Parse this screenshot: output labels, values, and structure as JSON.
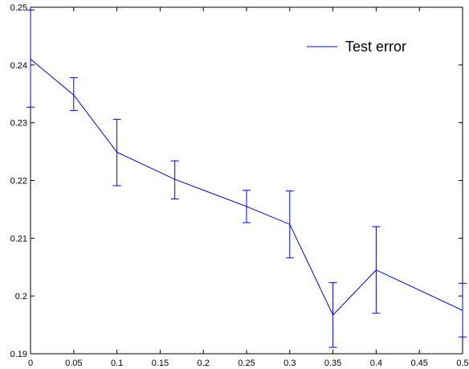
{
  "chart_data": {
    "type": "line",
    "title": "",
    "xlabel": "",
    "ylabel": "",
    "xlim": [
      0,
      0.5
    ],
    "ylim": [
      0.19,
      0.25
    ],
    "xticks": [
      "0",
      "0.05",
      "0.1",
      "0.15",
      "0.2",
      "0.25",
      "0.3",
      "0.35",
      "0.4",
      "0.45",
      "0.5"
    ],
    "yticks": [
      "0.19",
      "0.2",
      "0.21",
      "0.22",
      "0.23",
      "0.24",
      "0.25"
    ],
    "grid": false,
    "legend_position": "top-right",
    "series": [
      {
        "name": "Test error",
        "color": "#0000ff",
        "x": [
          0,
          0.05,
          0.1,
          0.167,
          0.25,
          0.3,
          0.35,
          0.4,
          0.5
        ],
        "y": [
          0.241,
          0.2348,
          0.2249,
          0.2202,
          0.2155,
          0.2124,
          0.1967,
          0.2045,
          0.1975
        ],
        "err_low": [
          0.2327,
          0.2321,
          0.2191,
          0.2168,
          0.2127,
          0.2066,
          0.1911,
          0.197,
          0.1929
        ],
        "err_high": [
          0.2495,
          0.2378,
          0.2306,
          0.2234,
          0.2183,
          0.2182,
          0.2023,
          0.212,
          0.2022
        ]
      }
    ]
  }
}
